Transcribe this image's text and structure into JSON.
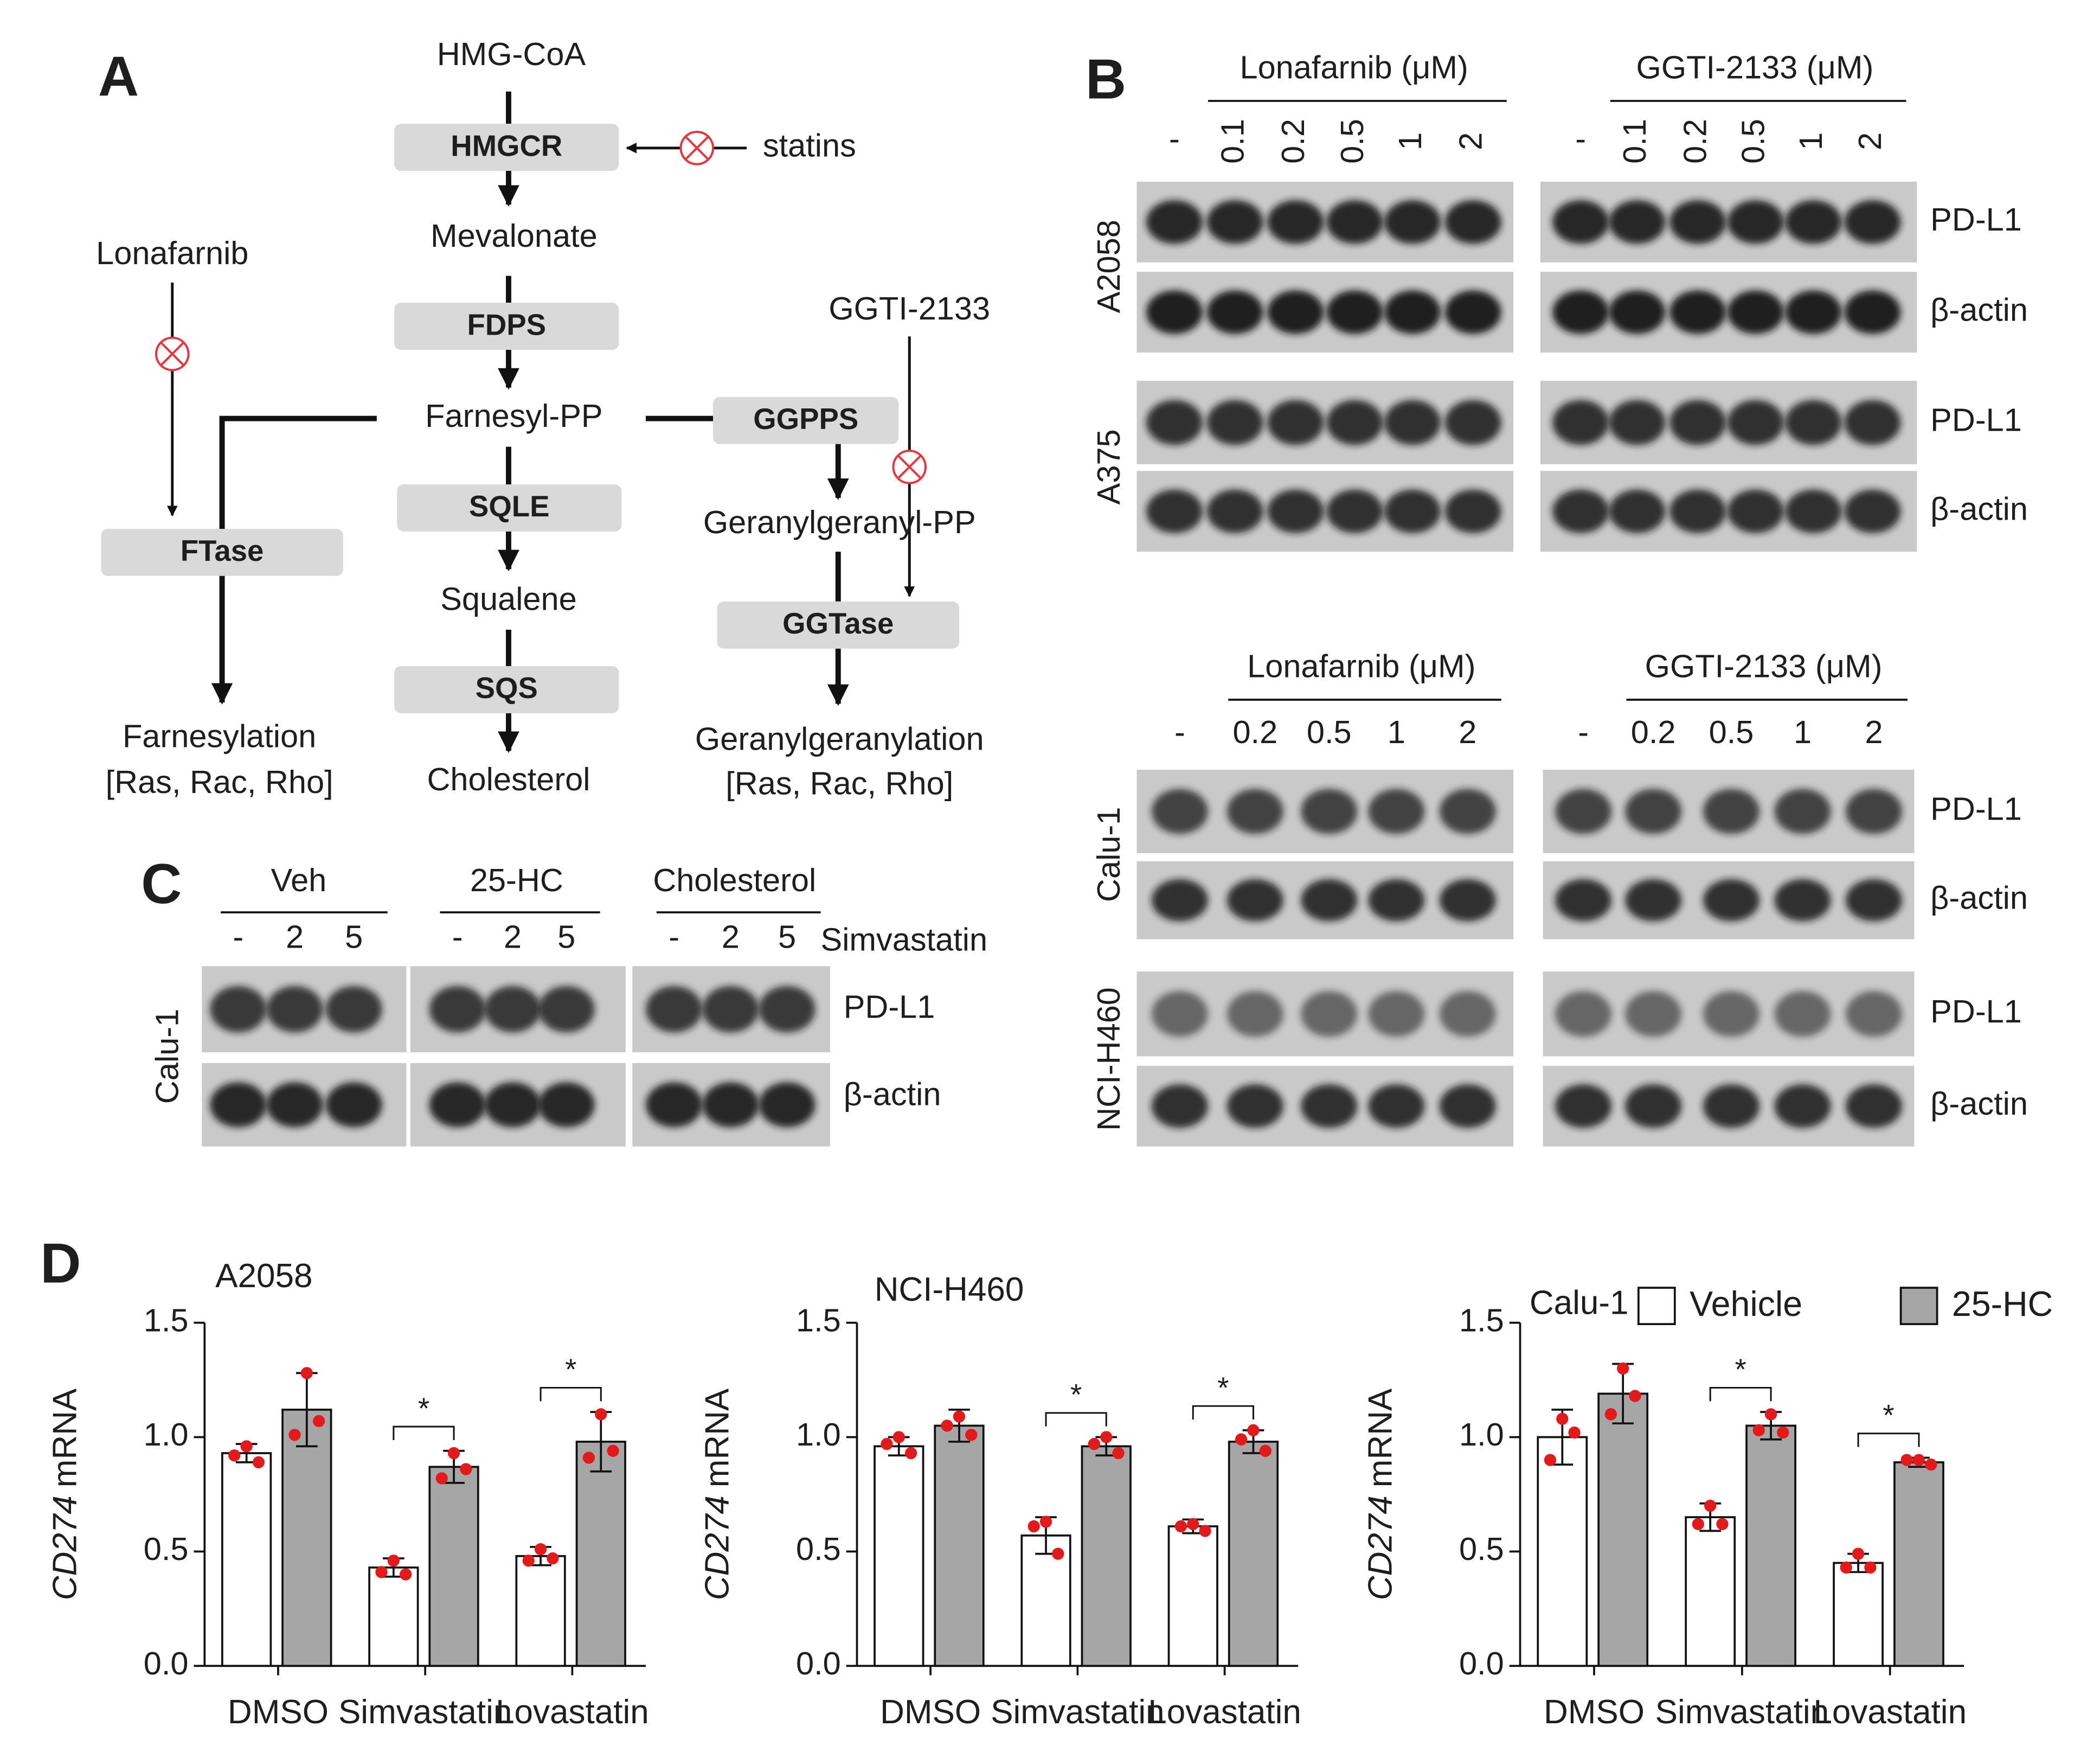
{
  "panel_labels": [
    "A",
    "B",
    "C",
    "D"
  ],
  "panel_a": {
    "nodes": [
      "HMG-CoA",
      "HMGCR",
      "statins",
      "Mevalonate",
      "FDPS",
      "Farnesyl-PP",
      "SQLE",
      "Squalene",
      "SQS",
      "Cholesterol",
      "Lonafarnib",
      "FTase",
      "Farnesylation",
      "[Ras, Rac, Rho]",
      "GGTI-2133",
      "GGPPS",
      "Geranylgeranyl-PP",
      "GGTase",
      "Geranylgeranylation",
      "[Ras, Rac, Rho]"
    ]
  },
  "panel_b": {
    "top": {
      "groups": [
        {
          "name": "Lonafarnib (μM)",
          "lanes": [
            "-",
            "0.1",
            "0.2",
            "0.5",
            "1",
            "2"
          ]
        },
        {
          "name": "GGTI-2133 (μM)",
          "lanes": [
            "-",
            "0.1",
            "0.2",
            "0.5",
            "1",
            "2"
          ]
        }
      ],
      "cell_lines": [
        "A2058",
        "A375"
      ],
      "proteins": [
        "PD-L1",
        "β-actin"
      ]
    },
    "bottom": {
      "groups": [
        {
          "name": "Lonafarnib (μM)",
          "lanes": [
            "-",
            "0.2",
            "0.5",
            "1",
            "2"
          ]
        },
        {
          "name": "GGTI-2133 (μM)",
          "lanes": [
            "-",
            "0.2",
            "0.5",
            "1",
            "2"
          ]
        }
      ],
      "cell_lines": [
        "Calu-1",
        "NCI-H460"
      ],
      "proteins": [
        "PD-L1",
        "β-actin"
      ]
    }
  },
  "panel_c": {
    "groups": [
      {
        "name": "Veh",
        "lanes": [
          "-",
          "2",
          "5"
        ]
      },
      {
        "name": "25-HC",
        "lanes": [
          "-",
          "2",
          "5"
        ]
      },
      {
        "name": "Cholesterol",
        "lanes": [
          "-",
          "2",
          "5"
        ]
      }
    ],
    "treatment": "Simvastatin",
    "cell_line": "Calu-1",
    "proteins": [
      "PD-L1",
      "β-actin"
    ]
  },
  "chart_data": [
    {
      "type": "bar",
      "title": "A2058",
      "y_label": {
        "gene": "CD274",
        "text": "mRNA"
      },
      "categories": [
        "DMSO",
        "Simvastatin",
        "Lovastatin"
      ],
      "ylim": [
        0,
        1.5
      ],
      "yticks": [
        {
          "value": 0,
          "label": "0.0"
        },
        0.5,
        {
          "value": 1,
          "label": "1.0"
        },
        1.5
      ],
      "series": [
        {
          "color": "#ffffff",
          "values": [
            0.93,
            0.43,
            0.48
          ],
          "errors": [
            0.04,
            0.04,
            0.04
          ],
          "points": [
            [
              0.92,
              0.96,
              0.89
            ],
            [
              0.41,
              0.46,
              0.4
            ],
            [
              0.46,
              0.51,
              0.47
            ]
          ]
        },
        {
          "color": "#a6a6a6",
          "values": [
            1.12,
            0.87,
            0.98
          ],
          "errors": [
            0.16,
            0.07,
            0.13
          ],
          "points": [
            [
              1.01,
              1.28,
              1.07
            ],
            [
              0.82,
              0.93,
              0.86
            ],
            [
              0.91,
              1.1,
              0.94
            ]
          ]
        }
      ],
      "annotations": [
        null,
        "*",
        "*"
      ],
      "point_color": "#e31a1c",
      "legend": false
    },
    {
      "type": "bar",
      "title": "NCI-H460",
      "y_label": {
        "gene": "CD274",
        "text": "mRNA"
      },
      "categories": [
        "DMSO",
        "Simvastatin",
        "Lovastatin"
      ],
      "ylim": [
        0,
        1.5
      ],
      "yticks": [
        {
          "value": 0,
          "label": "0.0"
        },
        0.5,
        {
          "value": 1,
          "label": "1.0"
        },
        1.5
      ],
      "series": [
        {
          "color": "#ffffff",
          "values": [
            0.96,
            0.57,
            0.61
          ],
          "errors": [
            0.04,
            0.08,
            0.03
          ],
          "points": [
            [
              0.97,
              1.0,
              0.93
            ],
            [
              0.61,
              0.63,
              0.49
            ],
            [
              0.61,
              0.62,
              0.59
            ]
          ]
        },
        {
          "color": "#a6a6a6",
          "values": [
            1.05,
            0.96,
            0.98
          ],
          "errors": [
            0.07,
            0.04,
            0.05
          ],
          "points": [
            [
              1.05,
              1.09,
              1.01
            ],
            [
              0.97,
              1.0,
              0.93
            ],
            [
              0.99,
              1.03,
              0.94
            ]
          ]
        }
      ],
      "annotations": [
        null,
        "*",
        "*"
      ],
      "point_color": "#e31a1c",
      "legend": false
    },
    {
      "type": "bar",
      "title": "Calu-1",
      "y_label": {
        "gene": "CD274",
        "text": "mRNA"
      },
      "categories": [
        "DMSO",
        "Simvastatin",
        "Lovastatin"
      ],
      "ylim": [
        0,
        1.5
      ],
      "yticks": [
        {
          "value": 0,
          "label": "0.0"
        },
        0.5,
        {
          "value": 1,
          "label": "1.0"
        },
        1.5
      ],
      "series": [
        {
          "name": "Vehicle",
          "color": "#ffffff",
          "values": [
            1.0,
            0.65,
            0.45
          ],
          "errors": [
            0.12,
            0.06,
            0.04
          ],
          "points": [
            [
              0.9,
              1.08,
              1.02
            ],
            [
              0.62,
              0.7,
              0.62
            ],
            [
              0.43,
              0.49,
              0.43
            ]
          ]
        },
        {
          "name": "25-HC",
          "color": "#a6a6a6",
          "values": [
            1.19,
            1.05,
            0.89
          ],
          "errors": [
            0.13,
            0.06,
            0.02
          ],
          "points": [
            [
              1.1,
              1.3,
              1.18
            ],
            [
              1.03,
              1.1,
              1.02
            ],
            [
              0.9,
              0.9,
              0.88
            ]
          ]
        }
      ],
      "annotations": [
        null,
        "*",
        "*"
      ],
      "point_color": "#e31a1c",
      "legend": true
    }
  ]
}
